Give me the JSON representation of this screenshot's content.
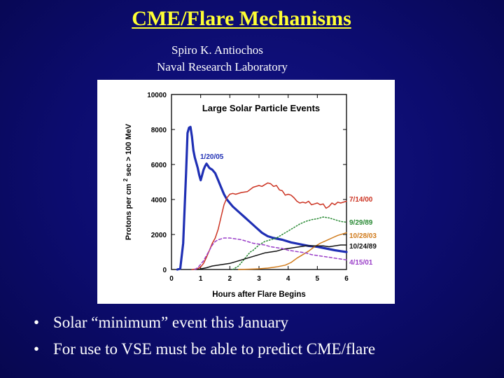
{
  "slide": {
    "title": "CME/Flare Mechanisms",
    "author": "Spiro  K. Antiochos",
    "affiliation": "Naval Research Laboratory",
    "bullets": [
      "Solar “minimum” event this January",
      "For use to VSE must be able to predict CME/flare"
    ],
    "bullet_symbol": "•"
  },
  "chart_data": {
    "type": "line",
    "title": "Large Solar Particle Events",
    "xlabel": "Hours after Flare Begins",
    "ylabel": "Protons per cm² sec > 100 MeV",
    "xlim": [
      0,
      6
    ],
    "ylim": [
      0,
      10000
    ],
    "x_ticks": [
      0,
      1,
      2,
      3,
      4,
      5,
      6
    ],
    "y_ticks": [
      0,
      2000,
      4000,
      6000,
      8000,
      10000
    ],
    "series": [
      {
        "name": "1/20/05",
        "color": "#1f2fb4",
        "dash": "solid",
        "width": 3.2,
        "points": [
          [
            0.2,
            0
          ],
          [
            0.3,
            50
          ],
          [
            0.4,
            1500
          ],
          [
            0.5,
            5500
          ],
          [
            0.55,
            7800
          ],
          [
            0.6,
            8100
          ],
          [
            0.65,
            8150
          ],
          [
            0.7,
            7600
          ],
          [
            0.75,
            6800
          ],
          [
            0.8,
            6400
          ],
          [
            0.9,
            5800
          ],
          [
            0.95,
            5400
          ],
          [
            1.0,
            5100
          ],
          [
            1.05,
            5400
          ],
          [
            1.1,
            5700
          ],
          [
            1.15,
            5900
          ],
          [
            1.2,
            6050
          ],
          [
            1.3,
            5800
          ],
          [
            1.4,
            5700
          ],
          [
            1.5,
            5500
          ],
          [
            1.6,
            5100
          ],
          [
            1.7,
            4700
          ],
          [
            1.8,
            4300
          ],
          [
            1.9,
            4000
          ],
          [
            2.0,
            3800
          ],
          [
            2.1,
            3600
          ],
          [
            2.3,
            3300
          ],
          [
            2.5,
            3000
          ],
          [
            2.7,
            2700
          ],
          [
            2.9,
            2400
          ],
          [
            3.1,
            2100
          ],
          [
            3.3,
            1900
          ],
          [
            3.5,
            1800
          ],
          [
            3.8,
            1700
          ],
          [
            4.1,
            1550
          ],
          [
            4.4,
            1450
          ],
          [
            4.7,
            1350
          ],
          [
            5.0,
            1300
          ],
          [
            5.3,
            1200
          ],
          [
            5.6,
            1100
          ],
          [
            5.8,
            1050
          ],
          [
            6.0,
            1000
          ]
        ]
      },
      {
        "name": "7/14/00",
        "color": "#cc3322",
        "dash": "solid",
        "width": 1.5,
        "points": [
          [
            0.7,
            0
          ],
          [
            0.8,
            20
          ],
          [
            0.9,
            50
          ],
          [
            1.0,
            150
          ],
          [
            1.1,
            350
          ],
          [
            1.2,
            700
          ],
          [
            1.3,
            1100
          ],
          [
            1.4,
            1500
          ],
          [
            1.5,
            1800
          ],
          [
            1.6,
            2300
          ],
          [
            1.7,
            3000
          ],
          [
            1.8,
            3700
          ],
          [
            1.9,
            4100
          ],
          [
            2.0,
            4300
          ],
          [
            2.1,
            4350
          ],
          [
            2.2,
            4300
          ],
          [
            2.4,
            4400
          ],
          [
            2.6,
            4450
          ],
          [
            2.8,
            4700
          ],
          [
            3.0,
            4800
          ],
          [
            3.1,
            4750
          ],
          [
            3.2,
            4850
          ],
          [
            3.3,
            4950
          ],
          [
            3.4,
            4900
          ],
          [
            3.5,
            4750
          ],
          [
            3.6,
            4800
          ],
          [
            3.7,
            4550
          ],
          [
            3.8,
            4500
          ],
          [
            3.9,
            4250
          ],
          [
            4.0,
            4300
          ],
          [
            4.1,
            4250
          ],
          [
            4.2,
            4100
          ],
          [
            4.3,
            3900
          ],
          [
            4.4,
            3800
          ],
          [
            4.5,
            3850
          ],
          [
            4.6,
            3800
          ],
          [
            4.7,
            3900
          ],
          [
            4.8,
            3700
          ],
          [
            4.9,
            3750
          ],
          [
            5.0,
            3800
          ],
          [
            5.1,
            3700
          ],
          [
            5.2,
            3750
          ],
          [
            5.3,
            3500
          ],
          [
            5.4,
            3600
          ],
          [
            5.5,
            3800
          ],
          [
            5.6,
            3700
          ],
          [
            5.7,
            3850
          ],
          [
            5.8,
            3800
          ],
          [
            6.0,
            3900
          ]
        ]
      },
      {
        "name": "9/29/89",
        "color": "#2a8a35",
        "dash": "dot",
        "width": 1.5,
        "points": [
          [
            2.1,
            0
          ],
          [
            2.2,
            100
          ],
          [
            2.3,
            200
          ],
          [
            2.4,
            400
          ],
          [
            2.5,
            600
          ],
          [
            2.6,
            800
          ],
          [
            2.7,
            1000
          ],
          [
            2.8,
            1100
          ],
          [
            3.0,
            1400
          ],
          [
            3.2,
            1600
          ],
          [
            3.4,
            1700
          ],
          [
            3.6,
            1800
          ],
          [
            3.8,
            2000
          ],
          [
            4.0,
            2200
          ],
          [
            4.2,
            2400
          ],
          [
            4.4,
            2600
          ],
          [
            4.6,
            2750
          ],
          [
            4.8,
            2850
          ],
          [
            5.0,
            2900
          ],
          [
            5.2,
            3000
          ],
          [
            5.4,
            2950
          ],
          [
            5.6,
            2850
          ],
          [
            5.8,
            2750
          ],
          [
            6.0,
            2700
          ]
        ]
      },
      {
        "name": "10/28/03",
        "color": "#d07a1a",
        "dash": "solid",
        "width": 1.5,
        "points": [
          [
            2.3,
            0
          ],
          [
            2.7,
            20
          ],
          [
            3.0,
            40
          ],
          [
            3.3,
            80
          ],
          [
            3.6,
            150
          ],
          [
            3.9,
            250
          ],
          [
            4.1,
            400
          ],
          [
            4.3,
            650
          ],
          [
            4.5,
            850
          ],
          [
            4.7,
            1050
          ],
          [
            4.9,
            1300
          ],
          [
            5.1,
            1500
          ],
          [
            5.3,
            1650
          ],
          [
            5.5,
            1800
          ],
          [
            5.7,
            1950
          ],
          [
            5.9,
            2050
          ],
          [
            6.0,
            2100
          ]
        ]
      },
      {
        "name": "10/24/89",
        "color": "#111111",
        "dash": "solid",
        "width": 1.5,
        "points": [
          [
            0.9,
            0
          ],
          [
            1.2,
            100
          ],
          [
            1.4,
            200
          ],
          [
            1.6,
            250
          ],
          [
            1.8,
            300
          ],
          [
            2.0,
            350
          ],
          [
            2.2,
            450
          ],
          [
            2.4,
            550
          ],
          [
            2.6,
            650
          ],
          [
            2.8,
            750
          ],
          [
            3.0,
            850
          ],
          [
            3.2,
            950
          ],
          [
            3.4,
            1000
          ],
          [
            3.6,
            1050
          ],
          [
            3.8,
            1150
          ],
          [
            4.0,
            1200
          ],
          [
            4.2,
            1250
          ],
          [
            4.4,
            1300
          ],
          [
            4.6,
            1350
          ],
          [
            4.8,
            1350
          ],
          [
            5.0,
            1350
          ],
          [
            5.2,
            1350
          ],
          [
            5.4,
            1300
          ],
          [
            5.6,
            1350
          ],
          [
            5.8,
            1400
          ],
          [
            6.0,
            1400
          ]
        ]
      },
      {
        "name": "4/15/01",
        "color": "#9a3ec8",
        "dash": "dash",
        "width": 1.5,
        "points": [
          [
            0.8,
            0
          ],
          [
            0.9,
            100
          ],
          [
            1.0,
            300
          ],
          [
            1.1,
            500
          ],
          [
            1.2,
            800
          ],
          [
            1.3,
            1100
          ],
          [
            1.4,
            1400
          ],
          [
            1.5,
            1600
          ],
          [
            1.6,
            1700
          ],
          [
            1.7,
            1750
          ],
          [
            1.8,
            1800
          ],
          [
            1.9,
            1800
          ],
          [
            2.0,
            1800
          ],
          [
            2.2,
            1750
          ],
          [
            2.4,
            1700
          ],
          [
            2.6,
            1600
          ],
          [
            2.8,
            1500
          ],
          [
            3.0,
            1450
          ],
          [
            3.2,
            1400
          ],
          [
            3.4,
            1300
          ],
          [
            3.6,
            1250
          ],
          [
            3.8,
            1200
          ],
          [
            4.0,
            1100
          ],
          [
            4.2,
            1050
          ],
          [
            4.4,
            1000
          ],
          [
            4.6,
            950
          ],
          [
            4.8,
            850
          ],
          [
            5.0,
            800
          ],
          [
            5.2,
            750
          ],
          [
            5.4,
            700
          ],
          [
            5.6,
            650
          ],
          [
            5.8,
            600
          ],
          [
            6.0,
            550
          ]
        ]
      }
    ],
    "annotations": [
      {
        "text": "1/20/05",
        "color": "#1f2fb4"
      },
      {
        "text": "7/14/00",
        "color": "#cc3322"
      },
      {
        "text": "9/29/89",
        "color": "#2a8a35"
      },
      {
        "text": "10/28/03",
        "color": "#d07a1a"
      },
      {
        "text": "10/24/89",
        "color": "#111111"
      },
      {
        "text": "4/15/01",
        "color": "#9a3ec8"
      }
    ]
  }
}
